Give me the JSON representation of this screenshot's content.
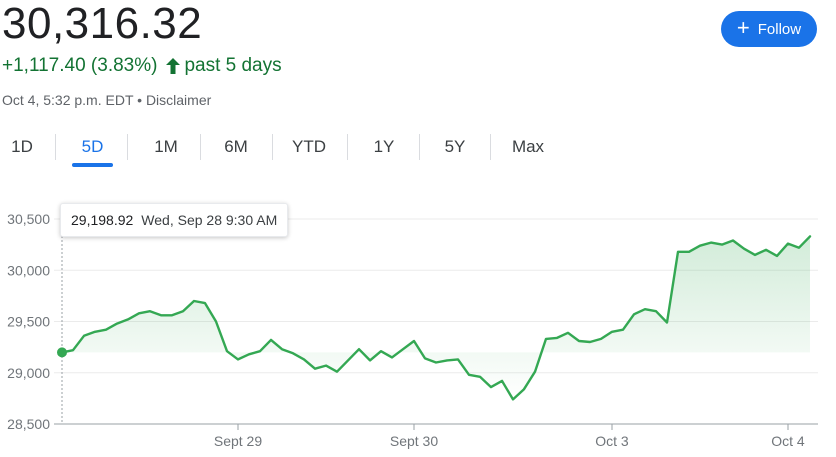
{
  "header": {
    "price": "30,316.32",
    "change": "+1,117.40 (3.83%)",
    "period": "past 5 days",
    "timestamp": "Oct 4, 5:32 p.m. EDT",
    "disclaimer": "Disclaimer",
    "separator": "•",
    "follow_label": "Follow"
  },
  "tabs": [
    {
      "label": "1D"
    },
    {
      "label": "5D",
      "active": true
    },
    {
      "label": "1M"
    },
    {
      "label": "6M"
    },
    {
      "label": "YTD"
    },
    {
      "label": "1Y"
    },
    {
      "label": "5Y"
    },
    {
      "label": "Max"
    }
  ],
  "tooltip": {
    "value": "29,198.92",
    "date": "Wed, Sep 28 9:30 AM"
  },
  "colors": {
    "line": "#34a853",
    "positive_text": "#137333",
    "accent": "#1a73e8"
  },
  "chart_data": {
    "type": "line",
    "ylim": [
      28500,
      30500
    ],
    "yticks": [
      28500,
      29000,
      29500,
      30000,
      30500
    ],
    "ytick_labels": [
      "28,500",
      "29,000",
      "29,500",
      "30,000",
      "30,500"
    ],
    "xtick_labels": [
      "Sept 29",
      "Sept 30",
      "Oct 3",
      "Oct 4"
    ],
    "xtick_index": [
      16,
      32,
      50,
      66
    ],
    "previous_close": 29198.92,
    "series": [
      {
        "values": [
          29198.92,
          29220,
          29360,
          29400,
          29420,
          29480,
          29520,
          29580,
          29600,
          29560,
          29560,
          29600,
          29700,
          29680,
          29500,
          29210,
          29130,
          29180,
          29210,
          29320,
          29230,
          29190,
          29130,
          29040,
          29070,
          29010,
          29120,
          29230,
          29120,
          29210,
          29150,
          29230,
          29310,
          29140,
          29100,
          29120,
          29130,
          28980,
          28960,
          28860,
          28920,
          28740,
          28840,
          29010,
          29330,
          29340,
          29390,
          29310,
          29300,
          29330,
          29400,
          29420,
          29570,
          29620,
          29600,
          29490,
          30180,
          30180,
          30240,
          30270,
          30250,
          30290,
          30210,
          30150,
          30200,
          30140,
          30260,
          30220,
          30330
        ]
      }
    ],
    "grid": true,
    "legend": "none"
  }
}
